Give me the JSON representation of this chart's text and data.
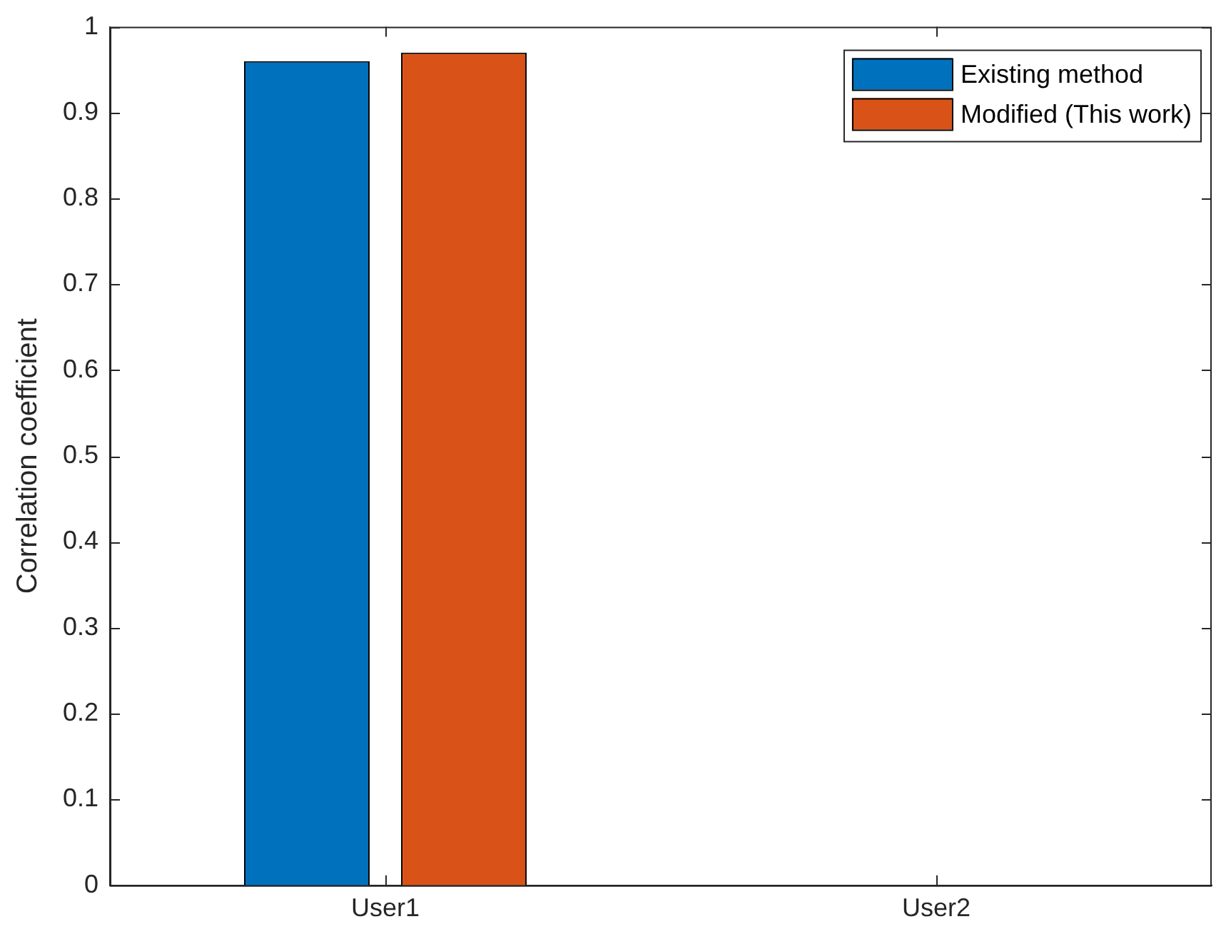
{
  "chart_data": {
    "type": "bar",
    "ylabel": "Correlation coefficient",
    "categories": [
      "User1",
      "User2"
    ],
    "series": [
      {
        "name": "Existing method",
        "color": "#0072bd",
        "values": [
          0.96,
          null
        ]
      },
      {
        "name": "Modified (This work)",
        "color": "#d95319",
        "values": [
          0.97,
          null
        ]
      }
    ],
    "ylim": [
      0,
      1
    ],
    "yticks": [
      0,
      0.1,
      0.2,
      0.3,
      0.4,
      0.5,
      0.6,
      0.7,
      0.8,
      0.9,
      1
    ],
    "grid": false,
    "legend": "top right"
  }
}
